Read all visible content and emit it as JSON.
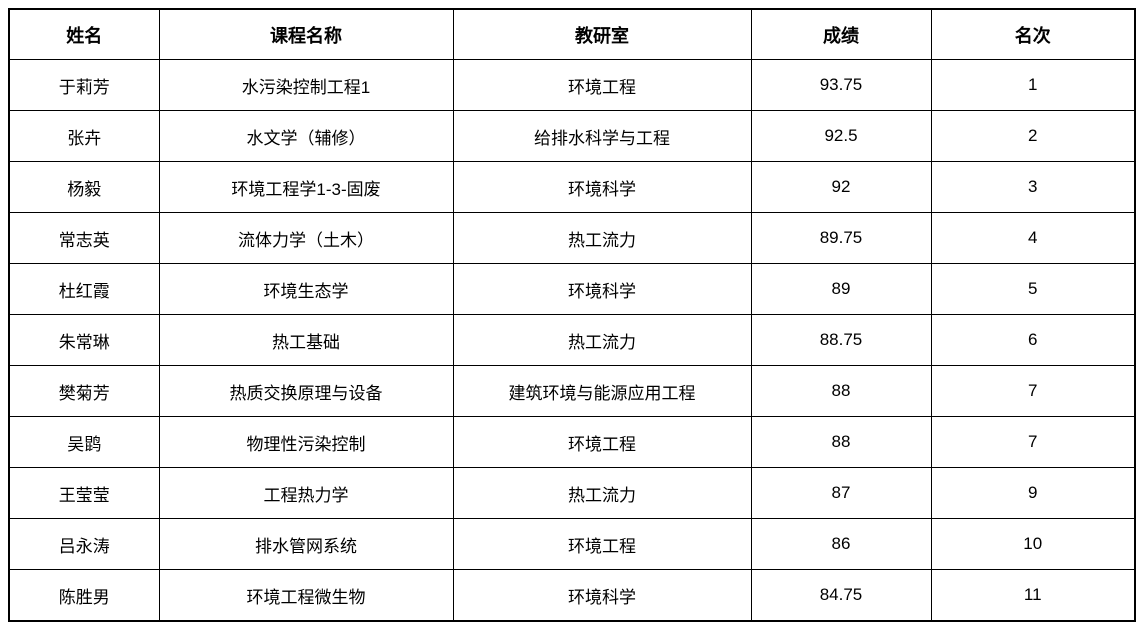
{
  "table": {
    "column_keys": [
      "name",
      "course",
      "office",
      "score",
      "rank"
    ],
    "headers": [
      "姓名",
      "课程名称",
      "教研室",
      "成绩",
      "名次"
    ],
    "rows": [
      [
        "于莉芳",
        "水污染控制工程1",
        "环境工程",
        "93.75",
        "1"
      ],
      [
        "张卉",
        "水文学（辅修）",
        "给排水科学与工程",
        "92.5",
        "2"
      ],
      [
        "杨毅",
        "环境工程学1-3-固废",
        "环境科学",
        "92",
        "3"
      ],
      [
        "常志英",
        "流体力学（土木）",
        "热工流力",
        "89.75",
        "4"
      ],
      [
        "杜红霞",
        "环境生态学",
        "环境科学",
        "89",
        "5"
      ],
      [
        "朱常琳",
        "热工基础",
        "热工流力",
        "88.75",
        "6"
      ],
      [
        "樊菊芳",
        "热质交换原理与设备",
        "建筑环境与能源应用工程",
        "88",
        "7"
      ],
      [
        "吴鹍",
        "物理性污染控制",
        "环境工程",
        "88",
        "7"
      ],
      [
        "王莹莹",
        "工程热力学",
        "热工流力",
        "87",
        "9"
      ],
      [
        "吕永涛",
        "排水管网系统",
        "环境工程",
        "86",
        "10"
      ],
      [
        "陈胜男",
        "环境工程微生物",
        "环境科学",
        "84.75",
        "11"
      ]
    ],
    "colors": {
      "border": "#000000",
      "text": "#000000",
      "background": "#ffffff"
    }
  }
}
